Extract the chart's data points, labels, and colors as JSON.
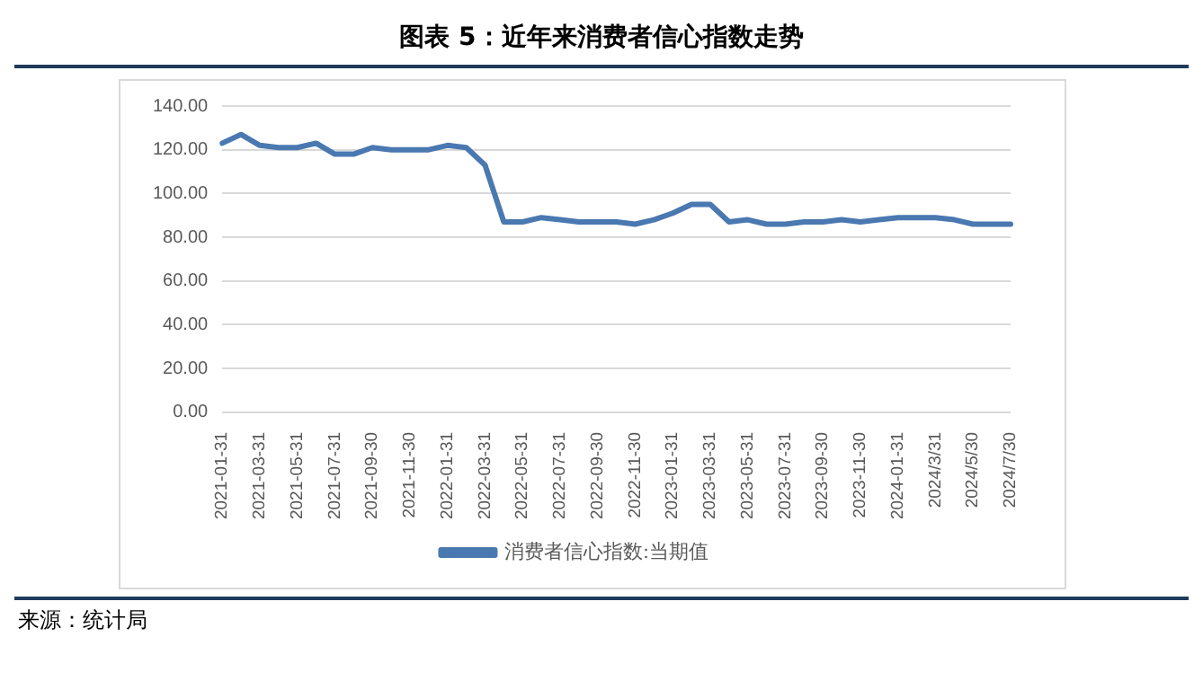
{
  "chart_data": {
    "type": "line",
    "title": "图表 5：近年来消费者信心指数走势",
    "categories": [
      "2021-01-31",
      null,
      "2021-03-31",
      null,
      "2021-05-31",
      null,
      "2021-07-31",
      null,
      "2021-09-30",
      null,
      "2021-11-30",
      null,
      "2022-01-31",
      null,
      "2022-03-31",
      null,
      "2022-05-31",
      null,
      "2022-07-31",
      null,
      "2022-09-30",
      null,
      "2022-11-30",
      null,
      "2023-01-31",
      null,
      "2023-03-31",
      null,
      "2023-05-31",
      null,
      "2023-07-31",
      null,
      "2023-09-30",
      null,
      "2023-11-30",
      null,
      "2024-01-31",
      null,
      "2024/3/31",
      null,
      "2024/5/30",
      null,
      "2024/7/30"
    ],
    "series": [
      {
        "name": "消费者信心指数:当期值",
        "color": "#4a78b0",
        "values": [
          123,
          127,
          122,
          121,
          121,
          123,
          118,
          118,
          121,
          120,
          120,
          120,
          122,
          121,
          113,
          87,
          87,
          89,
          88,
          87,
          87,
          87,
          86,
          88,
          91,
          95,
          95,
          87,
          88,
          86,
          86,
          87,
          87,
          88,
          87,
          88,
          89,
          89,
          89,
          88,
          86,
          86,
          86
        ]
      }
    ],
    "ylim": [
      0,
      140
    ],
    "yticks": [
      {
        "value": 0,
        "label": "0.00"
      },
      {
        "value": 20,
        "label": "20.00"
      },
      {
        "value": 40,
        "label": "40.00"
      },
      {
        "value": 60,
        "label": "60.00"
      },
      {
        "value": 80,
        "label": "80.00"
      },
      {
        "value": 100,
        "label": "100.00"
      },
      {
        "value": 120,
        "label": "120.00"
      },
      {
        "value": 140,
        "label": "140.00"
      }
    ],
    "grid": "y",
    "legend": "bottom",
    "marker": "none",
    "line_style": "solid",
    "annotations": [
      "来源：统计局"
    ]
  }
}
